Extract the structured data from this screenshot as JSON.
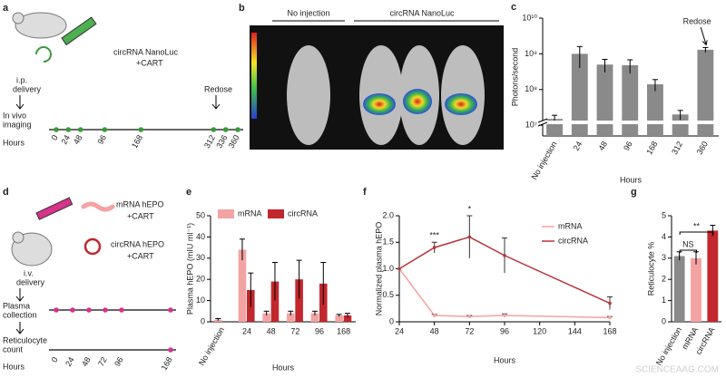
{
  "figure": {
    "panel_a": {
      "label": "a",
      "construct": [
        "circRNA NanoLuc",
        "+CART"
      ],
      "delivery": [
        "i.p.",
        "delivery"
      ],
      "redose": "Redose",
      "imaging": [
        "In vivo",
        "imaging"
      ],
      "axis_label": "Hours",
      "ticks": [
        0,
        24,
        48,
        96,
        168,
        312,
        336,
        360
      ]
    },
    "panel_b": {
      "label": "b",
      "group1": "No injection",
      "group2": "circRNA NanoLuc"
    },
    "panel_d": {
      "label": "d",
      "construct1": [
        "mRNA hEPO",
        "+CART"
      ],
      "construct2": [
        "circRNA hEPO",
        "+CART"
      ],
      "delivery": [
        "i.v.",
        "delivery"
      ],
      "collection": [
        "Plasma",
        "collection"
      ],
      "count": [
        "Reticulocyte",
        "count"
      ],
      "axis_label": "Hours",
      "ticks": [
        0,
        24,
        48,
        72,
        96,
        168
      ]
    },
    "watermark": "SCIENCEAAG.COM"
  },
  "chart_data": [
    {
      "type": "bar",
      "panel_label": "c",
      "y_label": "Photons/second",
      "x_label": "Hours",
      "log_scale": true,
      "axis_break": true,
      "categories": [
        "No injection",
        "24",
        "48",
        "96",
        "168",
        "312",
        "360"
      ],
      "values": [
        15000000,
        1000000000,
        500000000,
        480000000,
        140000000,
        20000000,
        1300000000
      ],
      "errors": [
        4000000,
        600000000,
        200000000,
        200000000,
        50000000,
        6000000,
        200000000
      ],
      "color": "#8a8a8a",
      "ylim": [
        5000000,
        10000000000
      ],
      "yticks": [
        {
          "value": 10000000,
          "label": "10⁷"
        },
        {
          "value": 100000000,
          "label": "10⁸"
        },
        {
          "value": 1000000000,
          "label": "10⁹"
        },
        {
          "value": 10000000000,
          "label": "10¹⁰"
        }
      ],
      "annotations": [
        {
          "text": "Redose",
          "category": "360"
        }
      ]
    },
    {
      "type": "bar",
      "panel_label": "e",
      "y_label": "Plasma hEPO (mIU ml⁻¹)",
      "x_label": "Hours",
      "legend": "top",
      "categories": [
        "No injection",
        "24",
        "48",
        "72",
        "96",
        "168"
      ],
      "series": [
        {
          "name": "mRNA",
          "color": "#f4a3a3",
          "values": [
            1,
            34,
            4,
            4,
            4,
            3
          ],
          "errors": [
            0.5,
            5,
            1,
            1,
            1,
            0.5
          ]
        },
        {
          "name": "circRNA",
          "color": "#c1272d",
          "values": [
            null,
            15,
            19,
            20,
            18,
            3
          ],
          "errors": [
            null,
            8,
            9,
            9,
            10,
            1
          ]
        }
      ],
      "ylim": [
        0,
        50
      ],
      "yticks": [
        0,
        10,
        20,
        30,
        40,
        50
      ]
    },
    {
      "type": "line",
      "panel_label": "f",
      "y_label": "Normalized plasma hEPO",
      "x_label": "Hours",
      "legend": "right",
      "x": [
        24,
        48,
        72,
        96,
        168
      ],
      "series": [
        {
          "name": "mRNA",
          "color": "#f4a3a3",
          "values": [
            1.0,
            0.12,
            0.1,
            0.12,
            0.08
          ],
          "errors": [
            null,
            0.02,
            0.02,
            0.03,
            0.02
          ]
        },
        {
          "name": "circRNA",
          "color": "#b8343a",
          "values": [
            1.0,
            1.4,
            1.6,
            1.25,
            0.35
          ],
          "errors": [
            null,
            0.1,
            0.4,
            0.33,
            0.12
          ]
        }
      ],
      "xlim": [
        24,
        168
      ],
      "xticks": [
        24,
        48,
        72,
        96,
        120,
        144,
        168
      ],
      "ylim": [
        0,
        2
      ],
      "yticks": [
        0,
        0.5,
        {
          "value": 1,
          "label": "1.0"
        },
        1.5,
        {
          "value": 2,
          "label": "2.0"
        }
      ],
      "annotations": [
        {
          "text": "***",
          "x": 48
        },
        {
          "text": "*",
          "x": 72
        }
      ]
    },
    {
      "type": "bar",
      "panel_label": "g",
      "y_label": "Reticulocyte %",
      "categories": [
        "No injection",
        "mRNA",
        "circRNA"
      ],
      "values": [
        3.1,
        3.0,
        4.3
      ],
      "errors": [
        0.2,
        0.3,
        0.25
      ],
      "colors": [
        "#8a8a8a",
        "#f4a3a3",
        "#c1272d"
      ],
      "ylim": [
        0,
        5
      ],
      "yticks": [
        0,
        1,
        2,
        3,
        4,
        5
      ],
      "annotations": [
        {
          "text": "NS",
          "from": "No injection",
          "to": "mRNA"
        },
        {
          "text": "**",
          "from": "No injection",
          "to": "circRNA"
        }
      ]
    }
  ]
}
